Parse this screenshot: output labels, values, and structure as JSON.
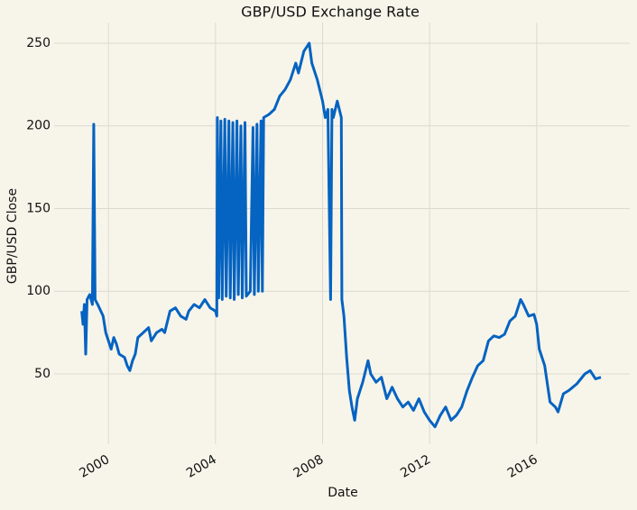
{
  "chart_data": {
    "type": "line",
    "title": "GBP/USD Exchange Rate",
    "x_label": "Date",
    "y_label": "GBP/USD Close",
    "x": [
      1999.0,
      1999.05,
      1999.1,
      1999.15,
      1999.2,
      1999.3,
      1999.4,
      1999.45,
      1999.5,
      1999.6,
      1999.8,
      1999.9,
      2000.0,
      2000.1,
      2000.2,
      2000.3,
      2000.4,
      2000.6,
      2000.7,
      2000.8,
      2000.9,
      2001.0,
      2001.1,
      2001.3,
      2001.5,
      2001.6,
      2001.8,
      2002.0,
      2002.1,
      2002.3,
      2002.5,
      2002.7,
      2002.9,
      2003.0,
      2003.2,
      2003.4,
      2003.6,
      2003.8,
      2004.0,
      2004.05,
      2004.07,
      2004.12,
      2004.2,
      2004.25,
      2004.35,
      2004.4,
      2004.5,
      2004.55,
      2004.65,
      2004.7,
      2004.8,
      2004.85,
      2004.95,
      2005.0,
      2005.1,
      2005.15,
      2005.3,
      2005.4,
      2005.45,
      2005.55,
      2005.6,
      2005.7,
      2005.75,
      2005.8,
      2006.0,
      2006.2,
      2006.4,
      2006.6,
      2006.8,
      2007.0,
      2007.1,
      2007.3,
      2007.5,
      2007.6,
      2007.8,
      2008.0,
      2008.1,
      2008.2,
      2008.3,
      2008.35,
      2008.4,
      2008.55,
      2008.7,
      2008.72,
      2008.8,
      2008.9,
      2009.0,
      2009.1,
      2009.2,
      2009.3,
      2009.5,
      2009.7,
      2009.8,
      2010.0,
      2010.2,
      2010.4,
      2010.6,
      2010.8,
      2011.0,
      2011.2,
      2011.4,
      2011.6,
      2011.8,
      2012.0,
      2012.2,
      2012.4,
      2012.6,
      2012.8,
      2013.0,
      2013.2,
      2013.4,
      2013.6,
      2013.8,
      2014.0,
      2014.2,
      2014.4,
      2014.6,
      2014.8,
      2015.0,
      2015.2,
      2015.4,
      2015.5,
      2015.7,
      2015.9,
      2016.0,
      2016.1,
      2016.3,
      2016.5,
      2016.7,
      2016.8,
      2017.0,
      2017.2,
      2017.5,
      2017.8,
      2018.0,
      2018.2,
      2018.4
    ],
    "series": [
      {
        "name": "GBP/USD Close",
        "color": "#0563c1",
        "values": [
          88,
          80,
          92,
          62,
          95,
          98,
          92,
          201,
          95,
          92,
          85,
          75,
          70,
          65,
          72,
          68,
          62,
          60,
          55,
          52,
          58,
          62,
          72,
          75,
          78,
          70,
          75,
          77,
          75,
          88,
          90,
          85,
          83,
          88,
          92,
          90,
          95,
          90,
          88,
          85,
          205,
          96,
          203,
          95,
          204,
          97,
          203,
          96,
          202,
          95,
          203,
          98,
          200,
          96,
          202,
          97,
          100,
          199,
          98,
          201,
          100,
          203,
          100,
          205,
          207,
          210,
          218,
          222,
          228,
          238,
          232,
          245,
          250,
          238,
          228,
          215,
          205,
          210,
          95,
          210,
          205,
          215,
          205,
          95,
          85,
          60,
          40,
          30,
          22,
          35,
          45,
          58,
          50,
          45,
          48,
          35,
          42,
          35,
          30,
          33,
          28,
          35,
          27,
          22,
          18,
          25,
          30,
          22,
          25,
          30,
          40,
          48,
          55,
          58,
          70,
          73,
          72,
          74,
          82,
          85,
          95,
          92,
          85,
          86,
          80,
          65,
          55,
          33,
          30,
          27,
          38,
          40,
          44,
          50,
          52,
          47,
          48
        ]
      }
    ],
    "xlim": [
      1997.97,
      2019.48
    ],
    "xticks": [
      2000,
      2004,
      2008,
      2012,
      2016
    ],
    "ylim": [
      7.5,
      262.5
    ],
    "yticks": [
      50,
      100,
      150,
      200,
      250
    ],
    "grid": true
  }
}
